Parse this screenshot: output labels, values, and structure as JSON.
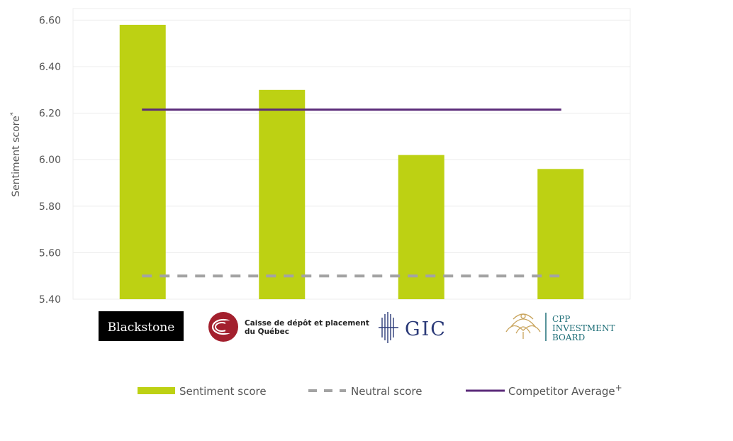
{
  "chart_data": {
    "type": "bar",
    "categories": [
      "Blackstone",
      "Caisse de dépôt et placement du Québec",
      "GIC",
      "CPP Investment Board"
    ],
    "series": [
      {
        "name": "Sentiment score",
        "values": [
          6.58,
          6.3,
          6.02,
          5.96
        ],
        "color": "#bdd113"
      }
    ],
    "reference_lines": [
      {
        "name": "Neutral score",
        "value": 5.5,
        "style": "dashed",
        "color": "#a3a3a3"
      },
      {
        "name": "Competitor Average",
        "superscript": "+",
        "value": 6.215,
        "style": "solid",
        "color": "#5b2b7a"
      }
    ],
    "ylabel": "Sentiment score",
    "ylabel_superscript": "*",
    "ylim": [
      5.4,
      6.65
    ],
    "yticks": [
      "5.40",
      "5.60",
      "5.80",
      "6.00",
      "6.20",
      "6.40",
      "6.60"
    ],
    "ytick_values": [
      5.4,
      5.6,
      5.8,
      6.0,
      6.2,
      6.4,
      6.6
    ],
    "grid": true,
    "legend_position": "bottom"
  },
  "logos": {
    "blackstone": "Blackstone",
    "cdpq_line1": "Caisse de dépôt et placement",
    "cdpq_line2": "du Québec",
    "gic": "GIC",
    "cpp_line1": "CPP",
    "cpp_line2": "INVESTMENT",
    "cpp_line3": "BOARD"
  },
  "colors": {
    "bar": "#bdd113",
    "neutral": "#a3a3a3",
    "average": "#5b2b7a",
    "grid": "#ececec",
    "cdpq_red": "#a3202e",
    "gic_blue": "#2b3a78",
    "cpp_gold": "#c9a45c",
    "cpp_teal": "#1f6f78"
  }
}
